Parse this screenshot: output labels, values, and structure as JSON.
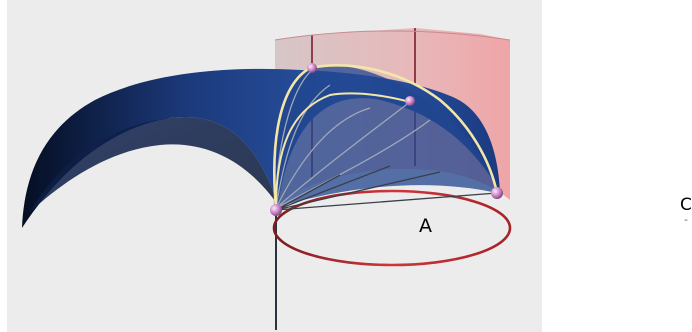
{
  "labels": {
    "a": "A",
    "c": "C",
    "c_dash": "-"
  },
  "colors": {
    "background_panel": "#ececec",
    "surface_blue": "#1d3f86",
    "surface_blue_dark": "#08152e",
    "cylinder_pink": "#e89a9e",
    "circle_red": "#c0282c",
    "arc_cream": "#f2e6a8",
    "vertex_pink": "#d89bd2",
    "axis_line": "#2b3340"
  }
}
